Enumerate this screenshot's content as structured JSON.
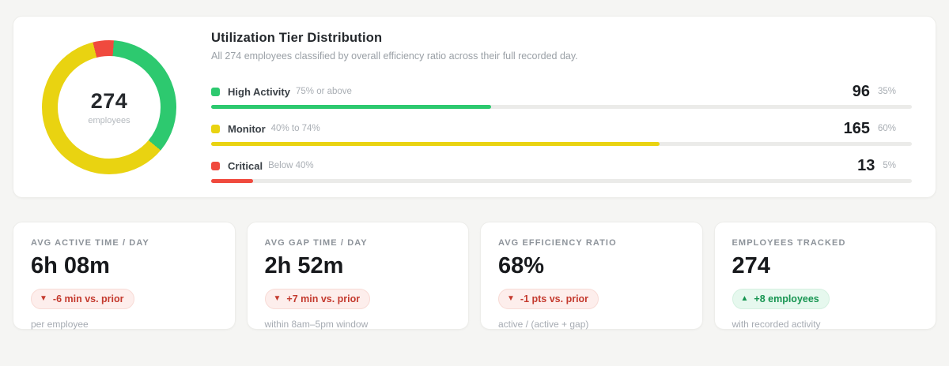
{
  "distribution": {
    "title": "Utilization Tier Distribution",
    "subtitle": "All 274 employees classified by overall efficiency ratio across their full recorded day.",
    "donut_center_value": "274",
    "donut_center_label": "employees",
    "tiers": [
      {
        "name": "High Activity",
        "range": "75% or above",
        "count": "96",
        "pct_label": "35%",
        "color": "#2dc96f",
        "bar_pct": 40
      },
      {
        "name": "Monitor",
        "range": "40% to 74%",
        "count": "165",
        "pct_label": "60%",
        "color": "#e9d311",
        "bar_pct": 64
      },
      {
        "name": "Critical",
        "range": "Below 40%",
        "count": "13",
        "pct_label": "5%",
        "color": "#f04a3e",
        "bar_pct": 6
      }
    ]
  },
  "stats": [
    {
      "label": "AVG ACTIVE TIME / DAY",
      "value": "6h 08m",
      "arrow": "▼",
      "delta": "-6 min vs. prior",
      "tone": "negative",
      "note": "per employee"
    },
    {
      "label": "AVG GAP TIME / DAY",
      "value": "2h 52m",
      "arrow": "▼",
      "delta": "+7 min vs. prior",
      "tone": "negative",
      "note": "within 8am–5pm window"
    },
    {
      "label": "AVG EFFICIENCY RATIO",
      "value": "68%",
      "arrow": "▼",
      "delta": "-1 pts vs. prior",
      "tone": "negative",
      "note": "active / (active + gap)"
    },
    {
      "label": "EMPLOYEES TRACKED",
      "value": "274",
      "arrow": "▲",
      "delta": "+8 employees",
      "tone": "positive",
      "note": "with recorded activity"
    }
  ],
  "chart_data": {
    "type": "pie",
    "title": "Utilization Tier Distribution",
    "categories": [
      "High Activity",
      "Monitor",
      "Critical"
    ],
    "values": [
      96,
      165,
      13
    ],
    "percentages": [
      35,
      60,
      5
    ],
    "total": 274,
    "colors": [
      "#2dc96f",
      "#e9d311",
      "#f04a3e"
    ],
    "donut_start_angle_deg": 4,
    "legend_position": "rows-right-of-donut"
  },
  "theme": {
    "page_bg": "#f5f5f3",
    "card_bg": "#ffffff",
    "track": "#ebebe9",
    "negative_text": "#c43a2e",
    "negative_bg": "#fdeeec",
    "positive_text": "#179551",
    "positive_bg": "#e6f8ee"
  }
}
